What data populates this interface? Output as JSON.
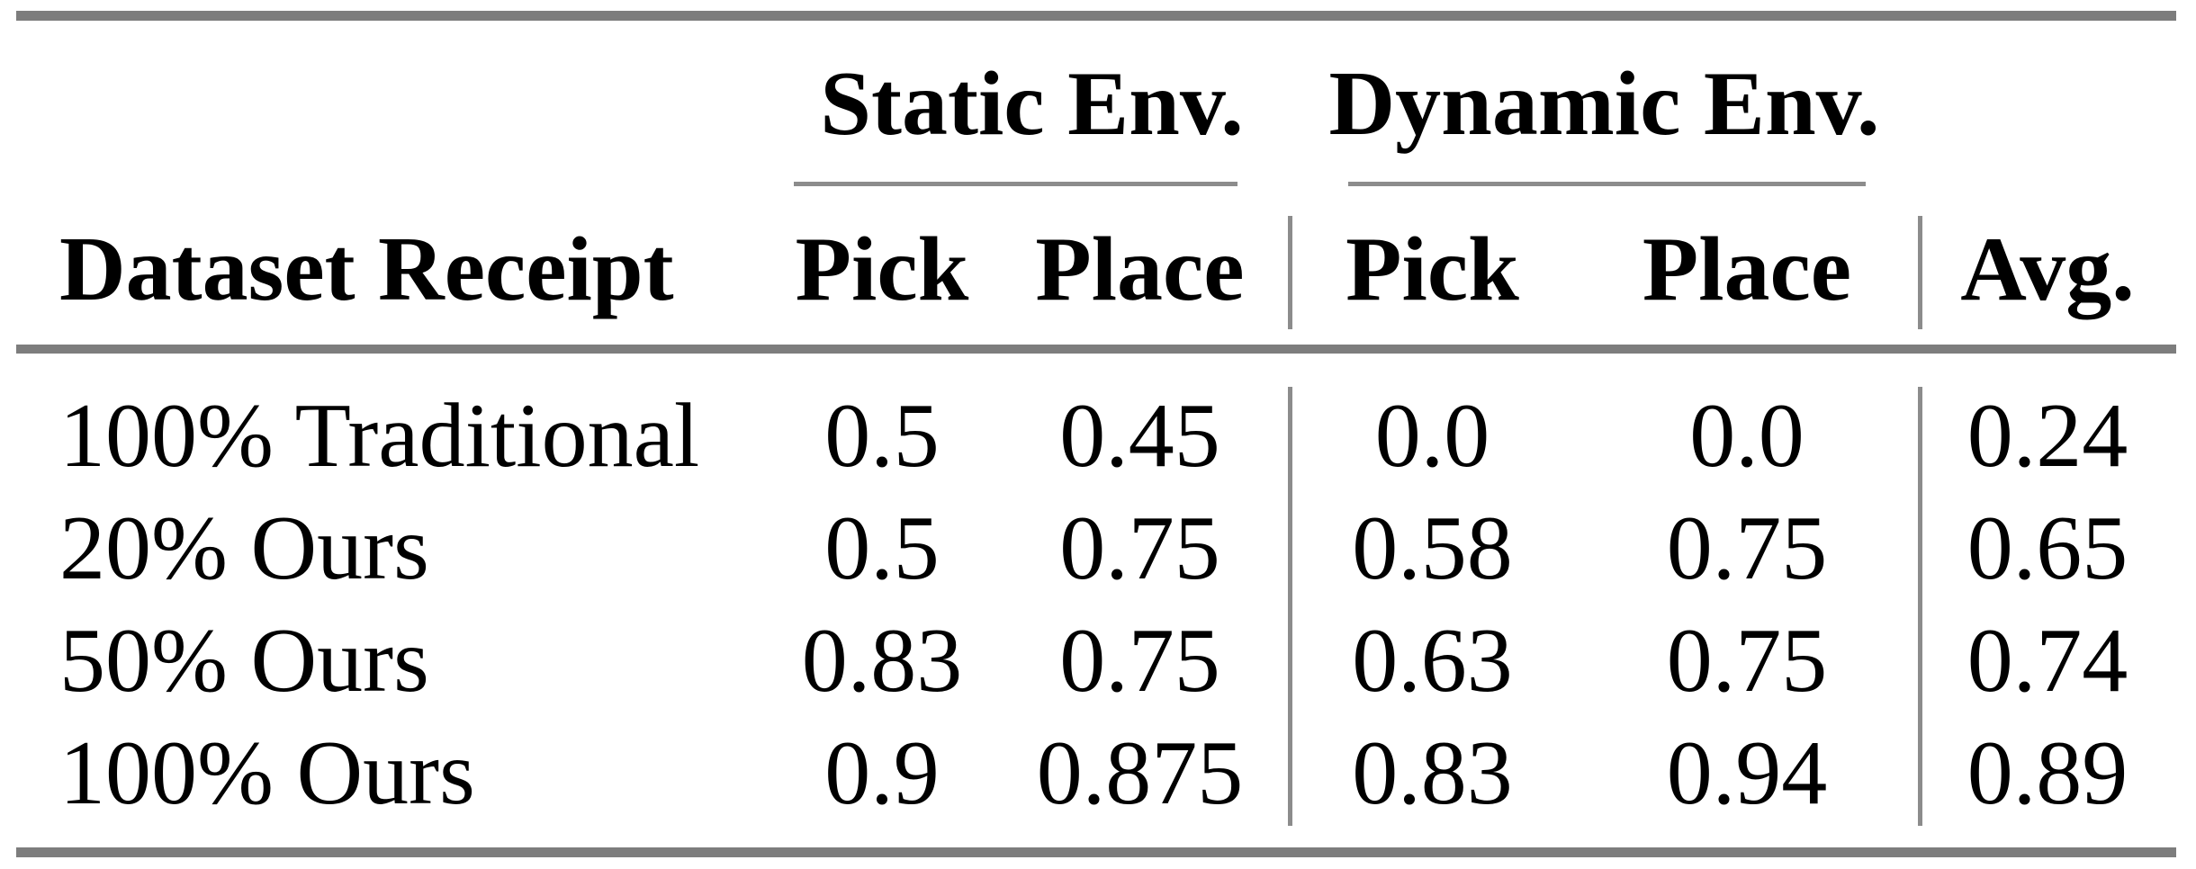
{
  "figure": {
    "kind": "results-table",
    "group_headers": {
      "static": "Static Env.",
      "dynamic": "Dynamic Env."
    },
    "column_headers": {
      "row_label": "Dataset Receipt",
      "static_pick": "Pick",
      "static_place": "Place",
      "dynamic_pick": "Pick",
      "dynamic_place": "Place",
      "avg": "Avg."
    },
    "rows": [
      {
        "label": "100% Traditional",
        "values": [
          "0.5",
          "0.45",
          "0.0",
          "0.0",
          "0.24"
        ]
      },
      {
        "label": "20% Ours",
        "values": [
          "0.5",
          "0.75",
          "0.58",
          "0.75",
          "0.65"
        ]
      },
      {
        "label": "50% Ours",
        "values": [
          "0.83",
          "0.75",
          "0.63",
          "0.75",
          "0.74"
        ]
      },
      {
        "label": "100% Ours",
        "values": [
          "0.9",
          "0.875",
          "0.83",
          "0.94",
          "0.89"
        ]
      }
    ],
    "colors": {
      "thick_rule_gray": "#7d7d7d",
      "thin_rule_gray": "#8c8c8c",
      "text": "#000000",
      "background": "#ffffff"
    }
  }
}
